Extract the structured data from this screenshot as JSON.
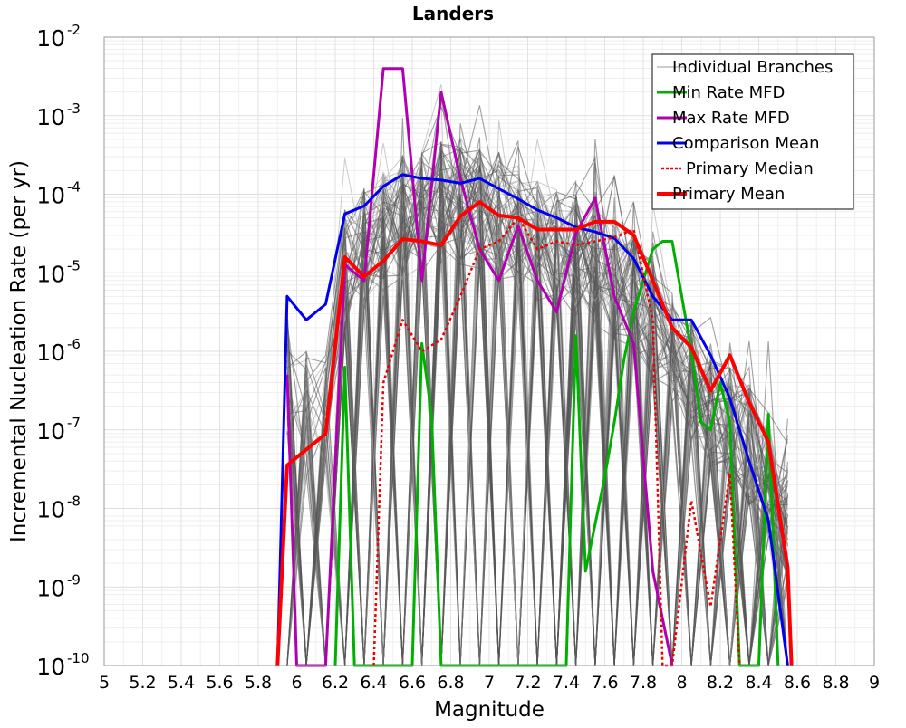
{
  "chart_data": {
    "type": "line",
    "title": "Landers",
    "xlabel": "Magnitude",
    "ylabel": "Incremental Nucleation Rate (per yr)",
    "xlim": [
      5,
      9
    ],
    "ylim_log10": [
      -10,
      -2
    ],
    "yscale": "log",
    "grid": true,
    "x_ticks": [
      "5",
      "5.2",
      "5.4",
      "5.6",
      "5.8",
      "6",
      "6.2",
      "6.4",
      "6.6",
      "6.8",
      "7",
      "7.2",
      "7.4",
      "7.6",
      "7.8",
      "8",
      "8.2",
      "8.4",
      "8.6",
      "8.8",
      "9"
    ],
    "y_ticks": [
      {
        "base": "10",
        "exp": "-10"
      },
      {
        "base": "10",
        "exp": "-9"
      },
      {
        "base": "10",
        "exp": "-8"
      },
      {
        "base": "10",
        "exp": "-7"
      },
      {
        "base": "10",
        "exp": "-6"
      },
      {
        "base": "10",
        "exp": "-5"
      },
      {
        "base": "10",
        "exp": "-4"
      },
      {
        "base": "10",
        "exp": "-3"
      },
      {
        "base": "10",
        "exp": "-2"
      }
    ],
    "legend_position": "top-right",
    "legend": [
      {
        "label": "Individual Branches",
        "color": "#aaaaaa",
        "style": "thin"
      },
      {
        "label": "Min Rate MFD",
        "color": "#00b000",
        "style": "solid"
      },
      {
        "label": "Max Rate MFD",
        "color": "#b000b0",
        "style": "solid"
      },
      {
        "label": "Comparison Mean",
        "color": "#0000ee",
        "style": "solid"
      },
      {
        "label": "Primary Median",
        "color": "#ee0000",
        "style": "dotted"
      },
      {
        "label": "Primary Mean",
        "color": "#ff0000",
        "style": "thick"
      }
    ],
    "branch_envelope": {
      "label": "Individual Branches",
      "x": [
        5.95,
        6.05,
        6.15,
        6.25,
        6.35,
        6.45,
        6.55,
        6.65,
        6.75,
        6.85,
        6.95,
        7.05,
        7.15,
        7.25,
        7.35,
        7.45,
        7.55,
        7.65,
        7.75,
        7.85,
        7.95,
        8.05,
        8.15,
        8.25,
        8.35,
        8.45,
        8.55
      ],
      "upper": [
        -5.1,
        -5.7,
        -5.7,
        -3.4,
        -3.3,
        -3.1,
        -3.0,
        -2.8,
        -2.4,
        -2.6,
        -2.8,
        -3.0,
        -3.2,
        -3.3,
        -3.1,
        -3.4,
        -3.3,
        -3.6,
        -3.9,
        -4.1,
        -4.6,
        -4.9,
        -5.2,
        -5.5,
        -5.5,
        -5.7,
        -6.4
      ],
      "typical_upper": [
        -5.5,
        -6.0,
        -6.0,
        -4.2,
        -3.9,
        -3.7,
        -3.5,
        -3.4,
        -3.3,
        -3.4,
        -3.4,
        -3.5,
        -3.7,
        -3.8,
        -3.9,
        -4.0,
        -4.1,
        -4.3,
        -4.5,
        -4.8,
        -5.2,
        -5.6,
        -5.9,
        -6.2,
        -6.4,
        -6.8,
        -7.4
      ]
    },
    "series": [
      {
        "name": "Min Rate MFD",
        "color": "#00b000",
        "x": [
          6.2,
          6.25,
          6.3,
          6.35,
          6.4,
          6.45,
          6.5,
          6.55,
          6.6,
          6.65,
          6.7,
          6.75,
          6.8,
          6.85,
          6.9,
          6.95,
          7.0,
          7.05,
          7.1,
          7.15,
          7.2,
          7.25,
          7.3,
          7.35,
          7.4,
          7.45,
          7.5,
          7.55,
          7.6,
          7.65,
          7.7,
          7.75,
          7.8,
          7.85,
          7.9,
          7.95,
          8.0,
          8.05,
          8.1,
          8.15,
          8.2,
          8.25,
          8.3,
          8.35,
          8.4,
          8.45,
          8.5
        ],
        "y": [
          -10,
          -6.2,
          -10,
          -10,
          -10,
          -10,
          -10,
          -10,
          -10,
          -5.9,
          -6.8,
          -10,
          -10,
          -10,
          -10,
          -10,
          -10,
          -10,
          -10,
          -10,
          -10,
          -10,
          -10,
          -10,
          -10,
          -5.8,
          -8.8,
          -8.2,
          -7.6,
          -6.9,
          -6.1,
          -5.5,
          -5.1,
          -4.7,
          -4.6,
          -4.6,
          -5.3,
          -6.0,
          -6.9,
          -7.0,
          -6.4,
          -6.9,
          -10,
          -10,
          -10,
          -6.8,
          -10
        ]
      },
      {
        "name": "Max Rate MFD",
        "color": "#b000b0",
        "x": [
          5.95,
          6.0,
          6.05,
          6.15,
          6.25,
          6.35,
          6.45,
          6.55,
          6.65,
          6.75,
          6.85,
          6.95,
          7.05,
          7.15,
          7.25,
          7.35,
          7.45,
          7.55,
          7.65,
          7.75,
          7.85,
          7.95
        ],
        "y": [
          -6.3,
          -10,
          -10,
          -10,
          -4.9,
          -5.1,
          -2.4,
          -2.4,
          -5.1,
          -2.7,
          -3.8,
          -4.7,
          -5.1,
          -4.4,
          -5.1,
          -5.5,
          -4.5,
          -4.05,
          -5.3,
          -5.9,
          -8.8,
          -10
        ]
      },
      {
        "name": "Comparison Mean",
        "color": "#0000ee",
        "x": [
          5.9,
          5.95,
          6.05,
          6.15,
          6.25,
          6.35,
          6.45,
          6.55,
          6.65,
          6.75,
          6.85,
          6.95,
          7.05,
          7.15,
          7.25,
          7.35,
          7.45,
          7.55,
          7.65,
          7.75,
          7.85,
          7.95,
          8.05,
          8.15,
          8.25,
          8.35,
          8.45,
          8.55
        ],
        "y": [
          -10,
          -5.3,
          -5.6,
          -5.4,
          -4.25,
          -4.15,
          -3.9,
          -3.75,
          -3.8,
          -3.82,
          -3.86,
          -3.8,
          -3.93,
          -4.06,
          -4.2,
          -4.3,
          -4.42,
          -4.48,
          -4.56,
          -4.82,
          -5.3,
          -5.6,
          -5.6,
          -6.05,
          -6.6,
          -7.4,
          -8.15,
          -10
        ]
      },
      {
        "name": "Primary Median",
        "color": "#ee0000",
        "dotted": true,
        "x": [
          6.4,
          6.45,
          6.55,
          6.65,
          6.75,
          6.85,
          6.95,
          7.05,
          7.15,
          7.25,
          7.35,
          7.45,
          7.55,
          7.65,
          7.75,
          7.85,
          7.9,
          7.95,
          8.05,
          8.15,
          8.25,
          8.3
        ],
        "y": [
          -10,
          -6.4,
          -5.6,
          -6.0,
          -5.85,
          -5.3,
          -4.7,
          -4.6,
          -4.3,
          -4.7,
          -4.6,
          -4.65,
          -4.6,
          -4.55,
          -4.45,
          -5.6,
          -10,
          -10,
          -7.9,
          -9.25,
          -7.55,
          -10
        ]
      },
      {
        "name": "Primary Mean",
        "color": "#ff0000",
        "x": [
          5.9,
          5.95,
          6.05,
          6.15,
          6.25,
          6.35,
          6.45,
          6.55,
          6.65,
          6.75,
          6.85,
          6.95,
          7.05,
          7.15,
          7.25,
          7.35,
          7.45,
          7.55,
          7.65,
          7.75,
          7.85,
          7.95,
          8.05,
          8.15,
          8.25,
          8.35,
          8.45,
          8.55,
          8.57
        ],
        "y": [
          -10,
          -7.45,
          -7.25,
          -7.05,
          -4.8,
          -5.05,
          -4.85,
          -4.57,
          -4.6,
          -4.65,
          -4.28,
          -4.1,
          -4.27,
          -4.3,
          -4.45,
          -4.45,
          -4.45,
          -4.35,
          -4.35,
          -4.52,
          -5.1,
          -5.7,
          -5.95,
          -6.5,
          -6.05,
          -6.65,
          -7.15,
          -8.75,
          -10
        ]
      }
    ]
  }
}
